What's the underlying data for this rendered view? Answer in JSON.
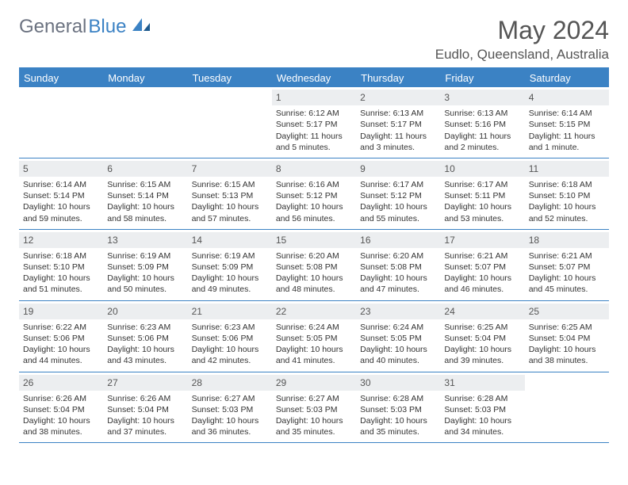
{
  "logo": {
    "text1": "General",
    "text2": "Blue"
  },
  "title": "May 2024",
  "location": "Eudlo, Queensland, Australia",
  "colors": {
    "accent": "#3b82c4",
    "header_text": "#ffffff",
    "daynum_bg": "#eceef0",
    "body_text": "#333333",
    "title_text": "#555555",
    "background": "#ffffff"
  },
  "day_names": [
    "Sunday",
    "Monday",
    "Tuesday",
    "Wednesday",
    "Thursday",
    "Friday",
    "Saturday"
  ],
  "weeks": [
    [
      {
        "n": "",
        "t": ""
      },
      {
        "n": "",
        "t": ""
      },
      {
        "n": "",
        "t": ""
      },
      {
        "n": "1",
        "t": "Sunrise: 6:12 AM\nSunset: 5:17 PM\nDaylight: 11 hours and 5 minutes."
      },
      {
        "n": "2",
        "t": "Sunrise: 6:13 AM\nSunset: 5:17 PM\nDaylight: 11 hours and 3 minutes."
      },
      {
        "n": "3",
        "t": "Sunrise: 6:13 AM\nSunset: 5:16 PM\nDaylight: 11 hours and 2 minutes."
      },
      {
        "n": "4",
        "t": "Sunrise: 6:14 AM\nSunset: 5:15 PM\nDaylight: 11 hours and 1 minute."
      }
    ],
    [
      {
        "n": "5",
        "t": "Sunrise: 6:14 AM\nSunset: 5:14 PM\nDaylight: 10 hours and 59 minutes."
      },
      {
        "n": "6",
        "t": "Sunrise: 6:15 AM\nSunset: 5:14 PM\nDaylight: 10 hours and 58 minutes."
      },
      {
        "n": "7",
        "t": "Sunrise: 6:15 AM\nSunset: 5:13 PM\nDaylight: 10 hours and 57 minutes."
      },
      {
        "n": "8",
        "t": "Sunrise: 6:16 AM\nSunset: 5:12 PM\nDaylight: 10 hours and 56 minutes."
      },
      {
        "n": "9",
        "t": "Sunrise: 6:17 AM\nSunset: 5:12 PM\nDaylight: 10 hours and 55 minutes."
      },
      {
        "n": "10",
        "t": "Sunrise: 6:17 AM\nSunset: 5:11 PM\nDaylight: 10 hours and 53 minutes."
      },
      {
        "n": "11",
        "t": "Sunrise: 6:18 AM\nSunset: 5:10 PM\nDaylight: 10 hours and 52 minutes."
      }
    ],
    [
      {
        "n": "12",
        "t": "Sunrise: 6:18 AM\nSunset: 5:10 PM\nDaylight: 10 hours and 51 minutes."
      },
      {
        "n": "13",
        "t": "Sunrise: 6:19 AM\nSunset: 5:09 PM\nDaylight: 10 hours and 50 minutes."
      },
      {
        "n": "14",
        "t": "Sunrise: 6:19 AM\nSunset: 5:09 PM\nDaylight: 10 hours and 49 minutes."
      },
      {
        "n": "15",
        "t": "Sunrise: 6:20 AM\nSunset: 5:08 PM\nDaylight: 10 hours and 48 minutes."
      },
      {
        "n": "16",
        "t": "Sunrise: 6:20 AM\nSunset: 5:08 PM\nDaylight: 10 hours and 47 minutes."
      },
      {
        "n": "17",
        "t": "Sunrise: 6:21 AM\nSunset: 5:07 PM\nDaylight: 10 hours and 46 minutes."
      },
      {
        "n": "18",
        "t": "Sunrise: 6:21 AM\nSunset: 5:07 PM\nDaylight: 10 hours and 45 minutes."
      }
    ],
    [
      {
        "n": "19",
        "t": "Sunrise: 6:22 AM\nSunset: 5:06 PM\nDaylight: 10 hours and 44 minutes."
      },
      {
        "n": "20",
        "t": "Sunrise: 6:23 AM\nSunset: 5:06 PM\nDaylight: 10 hours and 43 minutes."
      },
      {
        "n": "21",
        "t": "Sunrise: 6:23 AM\nSunset: 5:06 PM\nDaylight: 10 hours and 42 minutes."
      },
      {
        "n": "22",
        "t": "Sunrise: 6:24 AM\nSunset: 5:05 PM\nDaylight: 10 hours and 41 minutes."
      },
      {
        "n": "23",
        "t": "Sunrise: 6:24 AM\nSunset: 5:05 PM\nDaylight: 10 hours and 40 minutes."
      },
      {
        "n": "24",
        "t": "Sunrise: 6:25 AM\nSunset: 5:04 PM\nDaylight: 10 hours and 39 minutes."
      },
      {
        "n": "25",
        "t": "Sunrise: 6:25 AM\nSunset: 5:04 PM\nDaylight: 10 hours and 38 minutes."
      }
    ],
    [
      {
        "n": "26",
        "t": "Sunrise: 6:26 AM\nSunset: 5:04 PM\nDaylight: 10 hours and 38 minutes."
      },
      {
        "n": "27",
        "t": "Sunrise: 6:26 AM\nSunset: 5:04 PM\nDaylight: 10 hours and 37 minutes."
      },
      {
        "n": "28",
        "t": "Sunrise: 6:27 AM\nSunset: 5:03 PM\nDaylight: 10 hours and 36 minutes."
      },
      {
        "n": "29",
        "t": "Sunrise: 6:27 AM\nSunset: 5:03 PM\nDaylight: 10 hours and 35 minutes."
      },
      {
        "n": "30",
        "t": "Sunrise: 6:28 AM\nSunset: 5:03 PM\nDaylight: 10 hours and 35 minutes."
      },
      {
        "n": "31",
        "t": "Sunrise: 6:28 AM\nSunset: 5:03 PM\nDaylight: 10 hours and 34 minutes."
      },
      {
        "n": "",
        "t": ""
      }
    ]
  ]
}
